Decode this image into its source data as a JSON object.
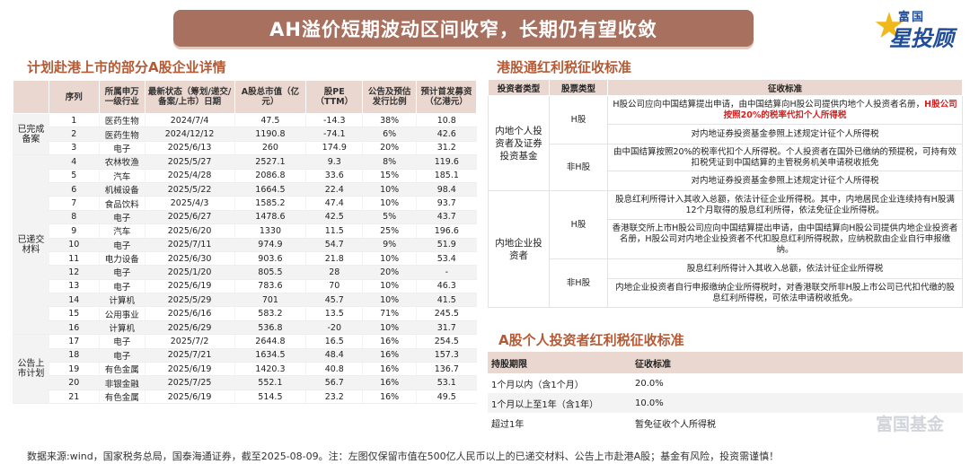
{
  "title": "AH溢价短期波动区间收窄，长期仍有望收敛",
  "logo": {
    "line1": "富国",
    "line2": "星投顾"
  },
  "left": {
    "title": "计划赴港上市的部分A股企业详情",
    "headers": [
      "",
      "序列",
      "所属申万一级行业",
      "最新状态（筹划/递交/备案/上市）日期",
      "A股总市值（亿元）",
      "股PE（TTM）",
      "公告及预估发行比例",
      "预计首发募资（亿港元）"
    ],
    "groups": [
      {
        "label": "已完成备案",
        "rows": 3
      },
      {
        "label": "已递交材料",
        "rows": 13
      },
      {
        "label": "公告上市计划",
        "rows": 5
      }
    ],
    "rows": [
      [
        "1",
        "医药生物",
        "2024/7/4",
        "47.5",
        "-14.3",
        "38%",
        "10.8"
      ],
      [
        "2",
        "医药生物",
        "2024/12/12",
        "1190.8",
        "-74.1",
        "6%",
        "42.6"
      ],
      [
        "3",
        "电子",
        "2025/6/13",
        "260",
        "174.9",
        "20%",
        "31.2"
      ],
      [
        "4",
        "农林牧渔",
        "2025/5/27",
        "2527.1",
        "9.3",
        "8%",
        "119.6"
      ],
      [
        "5",
        "汽车",
        "2025/4/28",
        "2086.8",
        "33.6",
        "15%",
        "185.1"
      ],
      [
        "6",
        "机械设备",
        "2025/5/22",
        "1664.5",
        "22.4",
        "10%",
        "98.4"
      ],
      [
        "7",
        "食品饮料",
        "2025/4/3",
        "1585.2",
        "47.4",
        "10%",
        "93.7"
      ],
      [
        "8",
        "电子",
        "2025/6/27",
        "1478.6",
        "42.5",
        "5%",
        "43.7"
      ],
      [
        "9",
        "汽车",
        "2025/6/20",
        "1330",
        "11.5",
        "25%",
        "196.6"
      ],
      [
        "10",
        "电子",
        "2025/7/11",
        "974.9",
        "54.7",
        "9%",
        "51.9"
      ],
      [
        "11",
        "电力设备",
        "2025/6/30",
        "903.6",
        "21.8",
        "10%",
        "53.4"
      ],
      [
        "12",
        "电子",
        "2025/1/20",
        "805.5",
        "28",
        "20%",
        "-"
      ],
      [
        "13",
        "电子",
        "2025/6/19",
        "783.6",
        "70",
        "10%",
        "46.3"
      ],
      [
        "14",
        "计算机",
        "2025/5/29",
        "701",
        "45.7",
        "10%",
        "41.5"
      ],
      [
        "15",
        "公用事业",
        "2025/6/16",
        "583.2",
        "13.5",
        "71%",
        "245.5"
      ],
      [
        "16",
        "计算机",
        "2025/6/29",
        "536.8",
        "-20",
        "10%",
        "31.7"
      ],
      [
        "17",
        "电子",
        "2025/7/2",
        "2644.8",
        "16.5",
        "16%",
        "254.5"
      ],
      [
        "18",
        "电子",
        "2025/7/21",
        "1634.5",
        "48.4",
        "16%",
        "157.3"
      ],
      [
        "19",
        "有色金属",
        "2025/6/19",
        "1420.3",
        "40.8",
        "16%",
        "136.7"
      ],
      [
        "20",
        "非银金融",
        "2025/7/25",
        "552.1",
        "56.7",
        "16%",
        "53.1"
      ],
      [
        "21",
        "有色金属",
        "2025/6/19",
        "514.5",
        "23.2",
        "16%",
        "49.5"
      ]
    ]
  },
  "hk": {
    "title": "港股通红利税征收标准",
    "headers": [
      "投资者类型",
      "股票类型",
      "征收标准"
    ],
    "investor1": "内地个人投资者及证券投资基金",
    "investor2": "内地企业投资者",
    "h_label": "H股",
    "nonh_label": "非H股",
    "r1_text": "H股公司应向中国结算提出申请，由中国结算向H股公司提供内地个人投资者名册，",
    "r1_red": "H股公司按照20%的税率代扣个人所得税",
    "r2": "对内地证券投资基金参照上述规定计征个人所得税",
    "r3": "由中国结算按照20%的税率代扣个人所得税。个人投资者在国外已缴纳的预提税，可持有效扣税凭证到中国结算的主管税务机关申请税收抵免",
    "r4": "对内地证券投资基金参照上述规定计征个人所得税",
    "r5": "股息红利所得计入其收入总额，依法计征企业所得税。其中，内地居民企业连续持有H股满12个月取得的股息红利所得，依法免征企业所得税。",
    "r6": "香港联交所上市H股公司应向中国结算提出申请，由中国结算向H股公司提供内地企业投资者名册，H股公司对内地企业投资者不代扣股息红利所得税款，应纳税款由企业自行申报缴纳。",
    "r7": "股息红利所得计入其收入总额，依法计征企业所得税",
    "r8": "内地企业投资者自行申报缴纳企业所得税时，对香港联交所非H股上市公司已代扣代缴的股息红利所得税，可依法申请税收抵免。"
  },
  "ind": {
    "title": "A股个人投资者红利税征收标准",
    "headers": [
      "持股期限",
      "征收标准"
    ],
    "rows": [
      [
        "1个月以内（含1个月）",
        "20.0%"
      ],
      [
        "1个月以上至1年（含1年）",
        "10.0%"
      ],
      [
        "超过1年",
        "暂免征收个人所得税"
      ]
    ]
  },
  "footer": "数据来源:wind，国家税务总局，国泰海通证券，截至2025-08-09。注：左图仅保留市值在500亿人民币以上的已递交材料、公告上市赴港A股；基金有风险，投资需谨慎！",
  "watermark": "富国基金",
  "colors": {
    "banner": "#a8705f",
    "header_bg": "#ead7cf",
    "section_title": "#b45a35",
    "highlight": "#d41f1f"
  }
}
